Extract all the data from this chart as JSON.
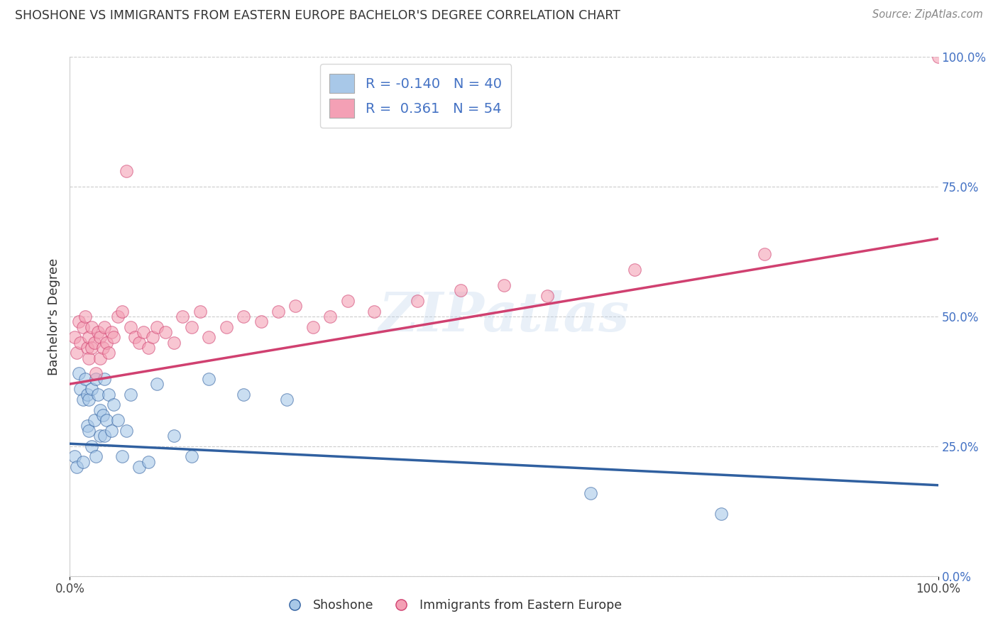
{
  "title": "SHOSHONE VS IMMIGRANTS FROM EASTERN EUROPE BACHELOR'S DEGREE CORRELATION CHART",
  "source": "Source: ZipAtlas.com",
  "ylabel": "Bachelor's Degree",
  "xlabel": "",
  "xlim": [
    0.0,
    1.0
  ],
  "ylim": [
    0.0,
    1.0
  ],
  "blue_R": -0.14,
  "blue_N": 40,
  "pink_R": 0.361,
  "pink_N": 54,
  "blue_color": "#a8c8e8",
  "pink_color": "#f4a0b5",
  "blue_line_color": "#3060a0",
  "pink_line_color": "#d04070",
  "watermark": "ZIPatlas",
  "blue_scatter_x": [
    0.005,
    0.008,
    0.01,
    0.012,
    0.015,
    0.015,
    0.018,
    0.02,
    0.02,
    0.022,
    0.022,
    0.025,
    0.025,
    0.028,
    0.03,
    0.03,
    0.032,
    0.035,
    0.035,
    0.038,
    0.04,
    0.04,
    0.042,
    0.045,
    0.048,
    0.05,
    0.055,
    0.06,
    0.065,
    0.07,
    0.08,
    0.09,
    0.1,
    0.12,
    0.14,
    0.16,
    0.2,
    0.25,
    0.6,
    0.75
  ],
  "blue_scatter_y": [
    0.23,
    0.21,
    0.39,
    0.36,
    0.34,
    0.22,
    0.38,
    0.35,
    0.29,
    0.34,
    0.28,
    0.36,
    0.25,
    0.3,
    0.38,
    0.23,
    0.35,
    0.32,
    0.27,
    0.31,
    0.38,
    0.27,
    0.3,
    0.35,
    0.28,
    0.33,
    0.3,
    0.23,
    0.28,
    0.35,
    0.21,
    0.22,
    0.37,
    0.27,
    0.23,
    0.38,
    0.35,
    0.34,
    0.16,
    0.12
  ],
  "pink_scatter_x": [
    0.005,
    0.008,
    0.01,
    0.012,
    0.015,
    0.018,
    0.02,
    0.022,
    0.022,
    0.025,
    0.025,
    0.028,
    0.03,
    0.032,
    0.035,
    0.035,
    0.038,
    0.04,
    0.042,
    0.045,
    0.048,
    0.05,
    0.055,
    0.06,
    0.065,
    0.07,
    0.075,
    0.08,
    0.085,
    0.09,
    0.095,
    0.1,
    0.11,
    0.12,
    0.13,
    0.14,
    0.15,
    0.16,
    0.18,
    0.2,
    0.22,
    0.24,
    0.26,
    0.28,
    0.3,
    0.32,
    0.35,
    0.4,
    0.45,
    0.5,
    0.55,
    0.65,
    0.8,
    1.0
  ],
  "pink_scatter_y": [
    0.46,
    0.43,
    0.49,
    0.45,
    0.48,
    0.5,
    0.44,
    0.46,
    0.42,
    0.48,
    0.44,
    0.45,
    0.39,
    0.47,
    0.46,
    0.42,
    0.44,
    0.48,
    0.45,
    0.43,
    0.47,
    0.46,
    0.5,
    0.51,
    0.78,
    0.48,
    0.46,
    0.45,
    0.47,
    0.44,
    0.46,
    0.48,
    0.47,
    0.45,
    0.5,
    0.48,
    0.51,
    0.46,
    0.48,
    0.5,
    0.49,
    0.51,
    0.52,
    0.48,
    0.5,
    0.53,
    0.51,
    0.53,
    0.55,
    0.56,
    0.54,
    0.59,
    0.62,
    1.0
  ],
  "blue_trend_x0": 0.0,
  "blue_trend_y0": 0.255,
  "blue_trend_x1": 1.0,
  "blue_trend_y1": 0.175,
  "pink_trend_x0": 0.0,
  "pink_trend_y0": 0.37,
  "pink_trend_x1": 1.0,
  "pink_trend_y1": 0.65
}
